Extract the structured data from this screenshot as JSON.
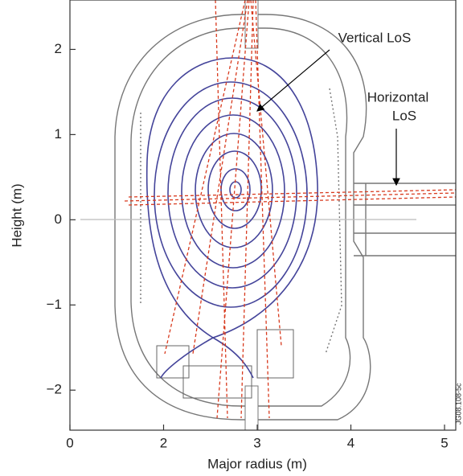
{
  "chart_data": {
    "type": "diagram",
    "xlabel": "Major radius (m)",
    "ylabel": "Height (m)",
    "annotations": [
      "Vertical LoS",
      [
        "Horizontal",
        "LoS"
      ]
    ],
    "code": "JG08.108-5c",
    "xlim": [
      0,
      5.12
    ],
    "xbreak": 1,
    "xticks": [
      0,
      2,
      3,
      4,
      5
    ],
    "ylim": [
      -2.47,
      2.58
    ],
    "yticks": [
      {
        "value": -2,
        "label": "−2"
      },
      {
        "value": -1,
        "label": "−1"
      },
      0,
      1,
      2
    ]
  }
}
